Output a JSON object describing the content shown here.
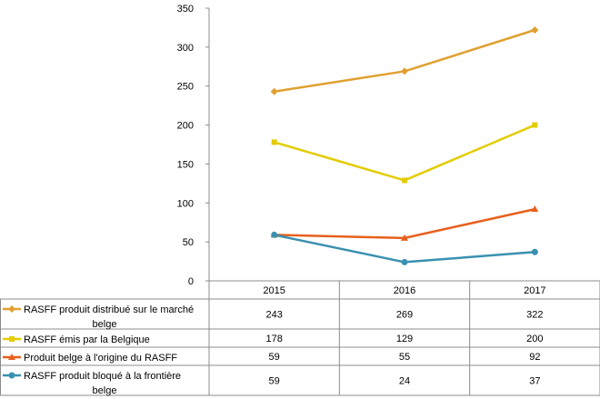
{
  "chart_data": {
    "type": "line",
    "categories": [
      "2015",
      "2016",
      "2017"
    ],
    "ylim": [
      0,
      350
    ],
    "yticks": [
      0,
      50,
      100,
      150,
      200,
      250,
      300,
      350
    ],
    "grid": false,
    "legend": "data-table-below",
    "series": [
      {
        "name": "RASFF produit distribué sur le marché belge",
        "legend_lines": [
          "RASFF produit distribué sur le marché",
          "belge"
        ],
        "values": [
          243,
          269,
          322
        ],
        "color": "#E0A030",
        "marker": "diamond"
      },
      {
        "name": "RASFF émis par la Belgique",
        "legend_lines": [
          "RASFF émis par la Belgique"
        ],
        "values": [
          178,
          129,
          200
        ],
        "color": "#E3CC00",
        "marker": "square"
      },
      {
        "name": "Produit belge à l'origine du RASFF",
        "legend_lines": [
          "Produit belge à l'origine du RASFF"
        ],
        "values": [
          59,
          55,
          92
        ],
        "color": "#E8601C",
        "marker": "triangle"
      },
      {
        "name": "RASFF produit bloqué à la frontière belge",
        "legend_lines": [
          "RASFF produit bloqué à la frontière",
          "belge"
        ],
        "values": [
          59,
          24,
          37
        ],
        "color": "#3A90B0",
        "marker": "circle"
      }
    ]
  }
}
